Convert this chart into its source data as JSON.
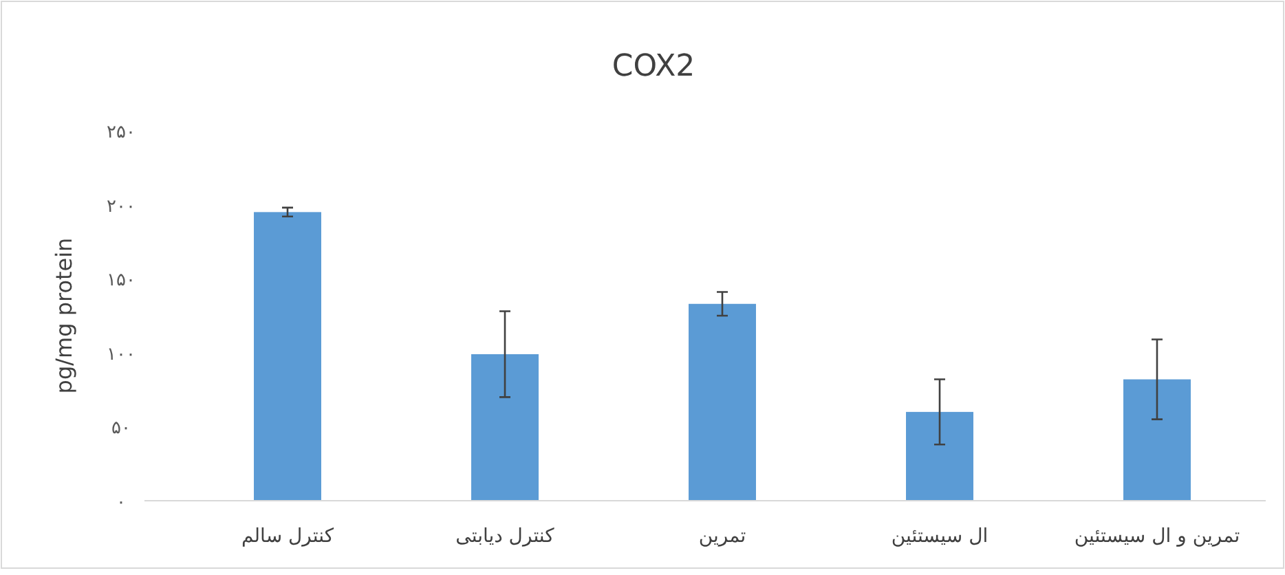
{
  "chart_data": {
    "type": "bar",
    "title": "COX2",
    "ylabel": "pg/mg protein",
    "categories": [
      "کنترل سالم",
      "کنترل دیابتی",
      "تمرین",
      "ال سیستئین",
      "تمرین و ال سیستئین"
    ],
    "values": [
      195,
      99,
      133,
      60,
      82
    ],
    "errors": [
      3,
      29,
      8,
      22,
      27
    ],
    "color": "#5b9bd5",
    "ylim": [
      0,
      250
    ],
    "yticks": [
      {
        "value": 0,
        "label": "۰"
      },
      {
        "value": 50,
        "label": "۵۰"
      },
      {
        "value": 100,
        "label": "۱۰۰"
      },
      {
        "value": 150,
        "label": "۱۵۰"
      },
      {
        "value": 200,
        "label": "۲۰۰"
      },
      {
        "value": 250,
        "label": "۲۵۰"
      }
    ]
  }
}
